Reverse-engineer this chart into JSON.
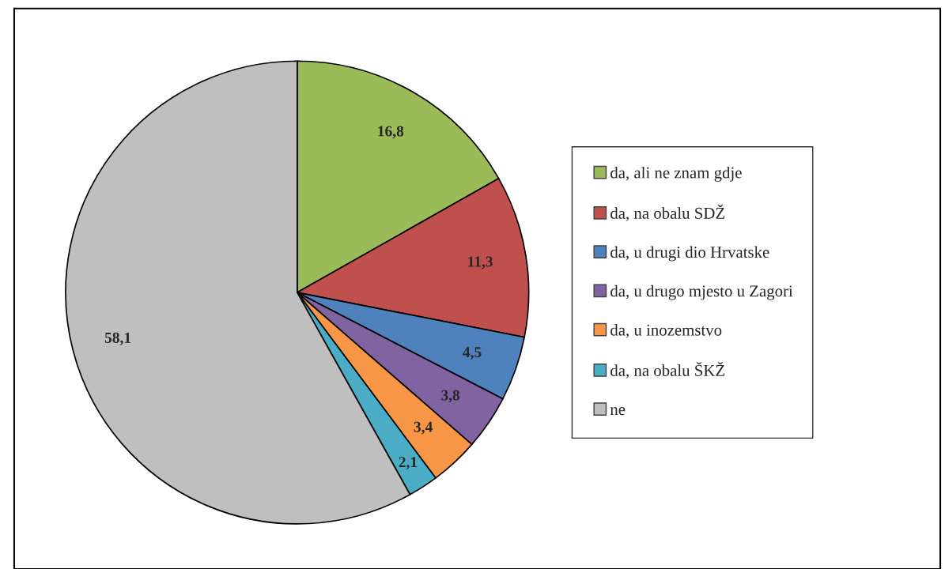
{
  "chart_data": {
    "type": "pie",
    "categories": [
      "da, ali ne znam gdje",
      "da, na obalu SDŽ",
      "da, u drugi dio Hrvatske",
      "da, u drugo mjesto u Zagori",
      "da, u inozemstvo",
      "da, na obalu ŠKŽ",
      "ne"
    ],
    "values": [
      16.8,
      11.3,
      4.5,
      3.8,
      3.4,
      2.1,
      58.1
    ],
    "colors": [
      "#9bbb59",
      "#c0504d",
      "#4f81bd",
      "#8064a2",
      "#f79646",
      "#4bacc6",
      "#bfbfbf"
    ],
    "value_labels": [
      "16,8",
      "11,3",
      "4,5",
      "3,8",
      "3,4",
      "2,1",
      "58,1"
    ],
    "legend": "right"
  }
}
